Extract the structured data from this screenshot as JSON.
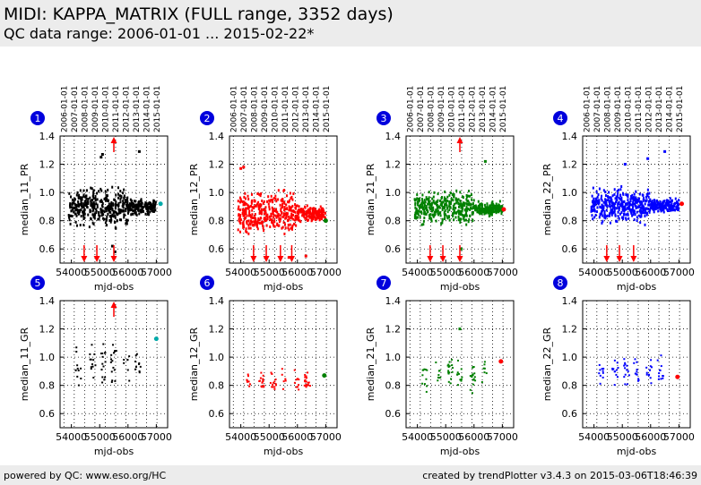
{
  "header": {
    "title": "MIDI: KAPPA_MATRIX (FULL range, 3352 days)",
    "subtitle": "QC data range: 2006-01-01 ... 2015-02-22*"
  },
  "footer": {
    "left": "powered by QC: www.eso.org/HC",
    "right": "created by trendPlotter v3.4.3 on 2015-03-06T18:46:39"
  },
  "colors": {
    "black": "#000000",
    "red": "#ff0000",
    "green": "#008000",
    "blue": "#0000ff",
    "cyan": "#00aaaa",
    "badge": "#0000dd"
  },
  "chart_data": {
    "type": "scatter",
    "xlabel": "mjd-obs",
    "xticks": [
      54000,
      55000,
      56000,
      57000
    ],
    "xtick_labels": [
      "54000",
      "55000",
      "56000",
      "57000"
    ],
    "xlim": [
      53600,
      57400
    ],
    "ylim": [
      0.5,
      1.4
    ],
    "yticks": [
      0.6,
      0.8,
      1.0,
      1.2,
      1.4
    ],
    "ytick_labels": [
      "0.6",
      "0.8",
      "1.0",
      "1.2",
      "1.4"
    ],
    "top_axis_dates": [
      "2006-01-01",
      "2007-01-01",
      "2008-01-01",
      "2009-01-01",
      "2010-01-01",
      "2011-01-01",
      "2012-01-01",
      "2013-01-01",
      "2014-01-01",
      "2015-01-01"
    ],
    "top_axis_mjd": [
      53736,
      54101,
      54466,
      54832,
      55197,
      55562,
      55927,
      56293,
      56658,
      57023
    ],
    "grid": "dotted",
    "panels": [
      {
        "id": "1",
        "ylabel": "median_11_PR",
        "color": "#000000",
        "row": 0,
        "col": 0,
        "density": "dense",
        "base": 0.9,
        "spread": 0.09,
        "last_point": {
          "x": 57150,
          "y": 0.92,
          "color": "#00aaaa"
        },
        "outliers": [
          [
            55050,
            1.25
          ],
          [
            55100,
            1.27
          ],
          [
            56400,
            1.29
          ],
          [
            55540,
            0.58
          ],
          [
            55450,
            0.62
          ]
        ],
        "arrows_up": [
          55500
        ],
        "arrows_down": [
          54450,
          54900,
          55500
        ]
      },
      {
        "id": "2",
        "ylabel": "median_12_PR",
        "color": "#ff0000",
        "row": 0,
        "col": 1,
        "density": "dense",
        "base": 0.85,
        "spread": 0.1,
        "last_point": {
          "x": 57000,
          "y": 0.8,
          "color": "#008000"
        },
        "outliers": [
          [
            54000,
            1.17
          ],
          [
            54100,
            1.18
          ],
          [
            55700,
            0.54
          ],
          [
            56300,
            0.55
          ]
        ],
        "arrows_up": [],
        "arrows_down": [
          54450,
          54900,
          55400,
          55800
        ]
      },
      {
        "id": "3",
        "ylabel": "median_21_PR",
        "color": "#008000",
        "row": 0,
        "col": 2,
        "density": "dense",
        "base": 0.89,
        "spread": 0.08,
        "last_point": {
          "x": 57050,
          "y": 0.88,
          "color": "#ff0000"
        },
        "outliers": [
          [
            56400,
            1.22
          ],
          [
            55550,
            0.6
          ]
        ],
        "arrows_up": [
          55500
        ],
        "arrows_down": [
          54450,
          54900,
          55500
        ]
      },
      {
        "id": "4",
        "ylabel": "median_22_PR",
        "color": "#0000ff",
        "row": 0,
        "col": 3,
        "density": "dense",
        "base": 0.91,
        "spread": 0.08,
        "last_point": {
          "x": 57100,
          "y": 0.92,
          "color": "#ff0000"
        },
        "outliers": [
          [
            55900,
            1.24
          ],
          [
            56500,
            1.29
          ],
          [
            55100,
            1.2
          ]
        ],
        "arrows_up": [],
        "arrows_down": [
          54450,
          54900,
          55400
        ]
      },
      {
        "id": "5",
        "ylabel": "median_11_GR",
        "color": "#000000",
        "row": 1,
        "col": 0,
        "density": "sparse",
        "base": 0.95,
        "spread": 0.1,
        "last_point": {
          "x": 57000,
          "y": 1.13,
          "color": "#00aaaa"
        },
        "outliers": [],
        "arrows_up": [
          55500
        ],
        "arrows_down": []
      },
      {
        "id": "6",
        "ylabel": "median_12_GR",
        "color": "#ff0000",
        "row": 1,
        "col": 1,
        "density": "sparse",
        "base": 0.83,
        "spread": 0.05,
        "last_point": {
          "x": 56950,
          "y": 0.87,
          "color": "#008000"
        },
        "outliers": [],
        "arrows_up": [],
        "arrows_down": []
      },
      {
        "id": "7",
        "ylabel": "median_21_GR",
        "color": "#008000",
        "row": 1,
        "col": 2,
        "density": "sparse",
        "base": 0.88,
        "spread": 0.08,
        "last_point": {
          "x": 56950,
          "y": 0.97,
          "color": "#ff0000"
        },
        "outliers": [
          [
            55500,
            1.2
          ]
        ],
        "arrows_up": [],
        "arrows_down": []
      },
      {
        "id": "8",
        "ylabel": "median_22_GR",
        "color": "#0000ff",
        "row": 1,
        "col": 3,
        "density": "sparse",
        "base": 0.9,
        "spread": 0.07,
        "last_point": {
          "x": 56950,
          "y": 0.86,
          "color": "#ff0000"
        },
        "outliers": [],
        "arrows_up": [],
        "arrows_down": []
      }
    ]
  }
}
